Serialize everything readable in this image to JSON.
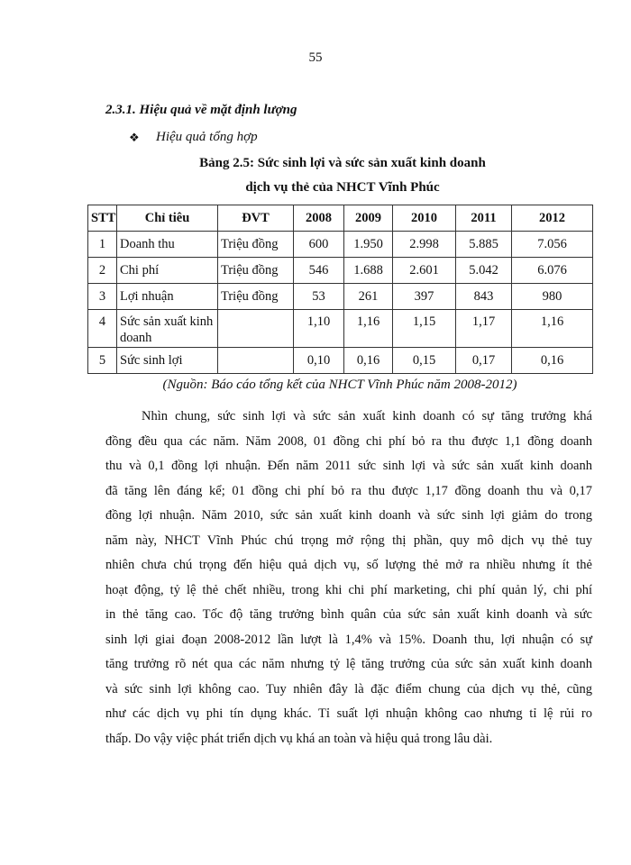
{
  "page_number": "55",
  "heading": "2.3.1. Hiệu quả về mặt định lượng",
  "bullet_icon": "diamond-bullet",
  "bullet_glyph": "❖",
  "subheading": "Hiệu quả tổng hợp",
  "table_title": [
    "Bảng 2.5: Sức sinh lợi và sức sản xuất kinh doanh",
    "dịch vụ thẻ của NHCT Vĩnh Phúc"
  ],
  "table": {
    "headers": [
      "STT",
      "Chỉ tiêu",
      "ĐVT",
      "2008",
      "2009",
      "2010",
      "2011",
      "2012"
    ],
    "rows": [
      [
        "1",
        "Doanh thu",
        "Triệu đồng",
        "600",
        "1.950",
        "2.998",
        "5.885",
        "7.056"
      ],
      [
        "2",
        "Chi phí",
        "Triệu đồng",
        "546",
        "1.688",
        "2.601",
        "5.042",
        "6.076"
      ],
      [
        "3",
        "Lợi nhuận",
        "Triệu đồng",
        "53",
        "261",
        "397",
        "843",
        "980"
      ],
      [
        "4",
        "Sức sản xuất kinh doanh",
        "",
        "1,10",
        "1,16",
        "1,15",
        "1,17",
        "1,16"
      ],
      [
        "5",
        "Sức sinh lợi",
        "",
        "0,10",
        "0,16",
        "0,15",
        "0,17",
        "0,16"
      ]
    ]
  },
  "source": "(Nguồn: Báo cáo tổng kết của NHCT Vĩnh Phúc năm 2008-2012)",
  "paragraph_lines": [
    "Nhìn chung, sức sinh lợi và sức sản xuất kinh doanh có sự tăng trưởng khá",
    "đồng đều qua các năm. Năm 2008, 01 đồng chi phí bỏ ra thu được 1,1 đồng doanh",
    "thu và 0,1 đồng lợi nhuận. Đến năm 2011 sức sinh lợi và sức sản xuất kinh doanh",
    "đã tăng lên đáng kể; 01 đồng chi phí bỏ ra thu được 1,17 đồng doanh thu và 0,17",
    "đồng lợi nhuận. Năm 2010, sức sản xuất kinh doanh và sức sinh lợi giảm do trong",
    "năm này, NHCT Vĩnh Phúc chú trọng mở rộng thị phần, quy mô dịch vụ thẻ tuy",
    "nhiên chưa chú trọng đến hiệu quả dịch vụ, số lượng thẻ mở ra nhiều nhưng ít thẻ",
    "hoạt động, tỷ lệ thẻ chết nhiều, trong khi chi phí marketing, chi phí quản lý, chi phí",
    "in thẻ tăng cao. Tốc độ tăng trưởng bình quân của sức sản xuất kinh doanh và sức",
    "sinh lợi giai đoạn 2008-2012 lần lượt là 1,4% và 15%. Doanh thu, lợi nhuận có sự",
    "tăng trưởng rõ nét qua các năm nhưng tỷ lệ tăng trưởng của sức sản xuất kinh doanh",
    "và sức sinh lợi không cao. Tuy nhiên đây là đặc điểm chung của dịch vụ thẻ, cũng",
    "như các dịch vụ phi tín dụng khác. Tỉ suất lợi nhuận không cao nhưng tỉ lệ rủi ro",
    "thấp. Do vậy việc phát triển dịch vụ khá an toàn và hiệu quả trong lâu dài."
  ]
}
